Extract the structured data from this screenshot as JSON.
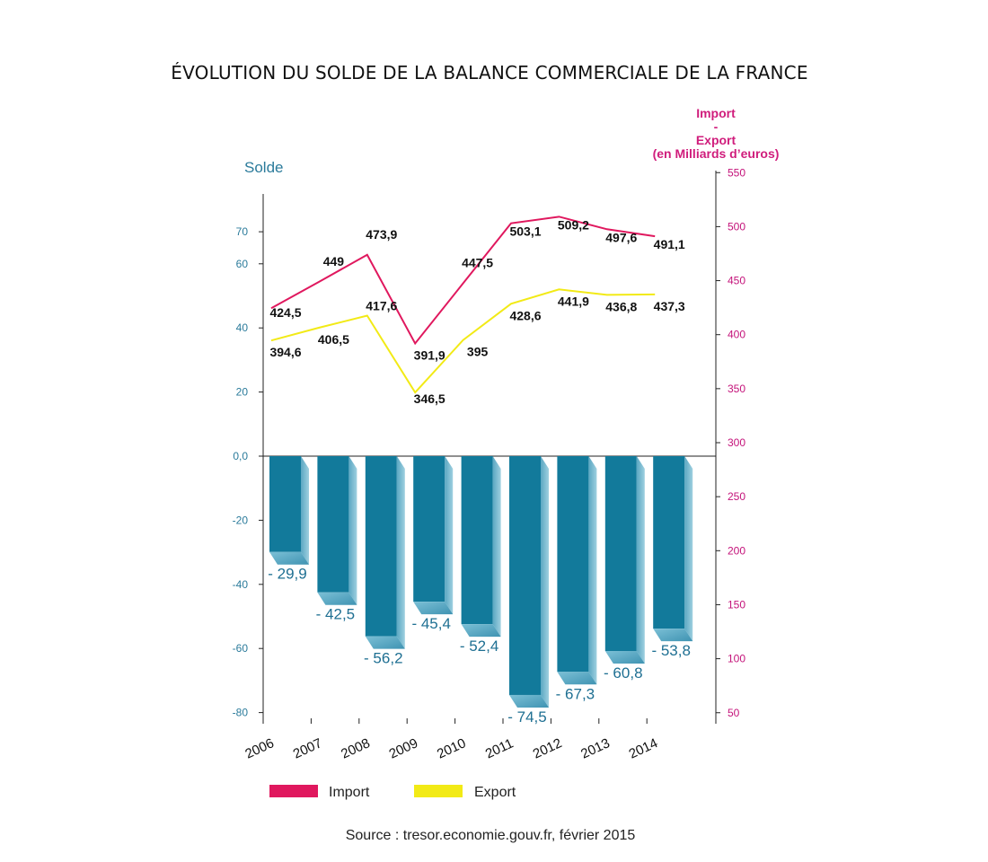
{
  "chart_data": {
    "type": "bar",
    "title": "ÉVOLUTION DU SOLDE DE LA BALANCE COMMERCIALE DE LA FRANCE",
    "categories": [
      "2006",
      "2007",
      "2008",
      "2009",
      "2010",
      "2011",
      "2012",
      "2013",
      "2014"
    ],
    "left_axis": {
      "title": "Solde",
      "ticks": [
        "70",
        "60",
        "40",
        "20",
        "0,0",
        "-20",
        "-40",
        "-60",
        "-80"
      ]
    },
    "right_axis": {
      "title_lines": [
        "Import",
        "-",
        "Export",
        "(en Milliards d’euros)"
      ],
      "ticks": [
        "550",
        "500",
        "450",
        "400",
        "350",
        "300",
        "250",
        "200",
        "150",
        "100",
        "50"
      ]
    },
    "solde": {
      "name": "Solde",
      "values": [
        -29.9,
        -42.5,
        -56.2,
        -45.4,
        -52.4,
        -74.5,
        -67.3,
        -60.8,
        -53.8
      ],
      "labels": [
        "- 29,9",
        "- 42,5",
        "- 56,2",
        "- 45,4",
        "- 52,4",
        "- 74,5",
        "- 67,3",
        "- 60,8",
        "- 53,8"
      ],
      "color": "#127a9b"
    },
    "series": [
      {
        "name": "Import",
        "color": "#e0185e",
        "values": [
          424.5,
          449,
          473.9,
          391.9,
          447.5,
          503.1,
          509.2,
          497.6,
          491.1
        ],
        "labels": [
          "424,5",
          "449",
          "473,9",
          "391,9",
          "447,5",
          "503,1",
          "509,2",
          "497,6",
          "491,1"
        ]
      },
      {
        "name": "Export",
        "color": "#f2ea16",
        "values": [
          394.6,
          406.5,
          417.6,
          346.5,
          395,
          428.6,
          441.9,
          436.8,
          437.3
        ],
        "labels": [
          "394,6",
          "406,5",
          "417,6",
          "346,5",
          "395",
          "428,6",
          "441,9",
          "436,8",
          "437,3"
        ]
      }
    ],
    "legend": [
      {
        "name": "Import",
        "color": "#e0185e"
      },
      {
        "name": "Export",
        "color": "#f2ea16"
      }
    ],
    "legend_position": "bottom",
    "grid": false
  },
  "source": "Source : tresor.economie.gouv.fr, février 2015"
}
